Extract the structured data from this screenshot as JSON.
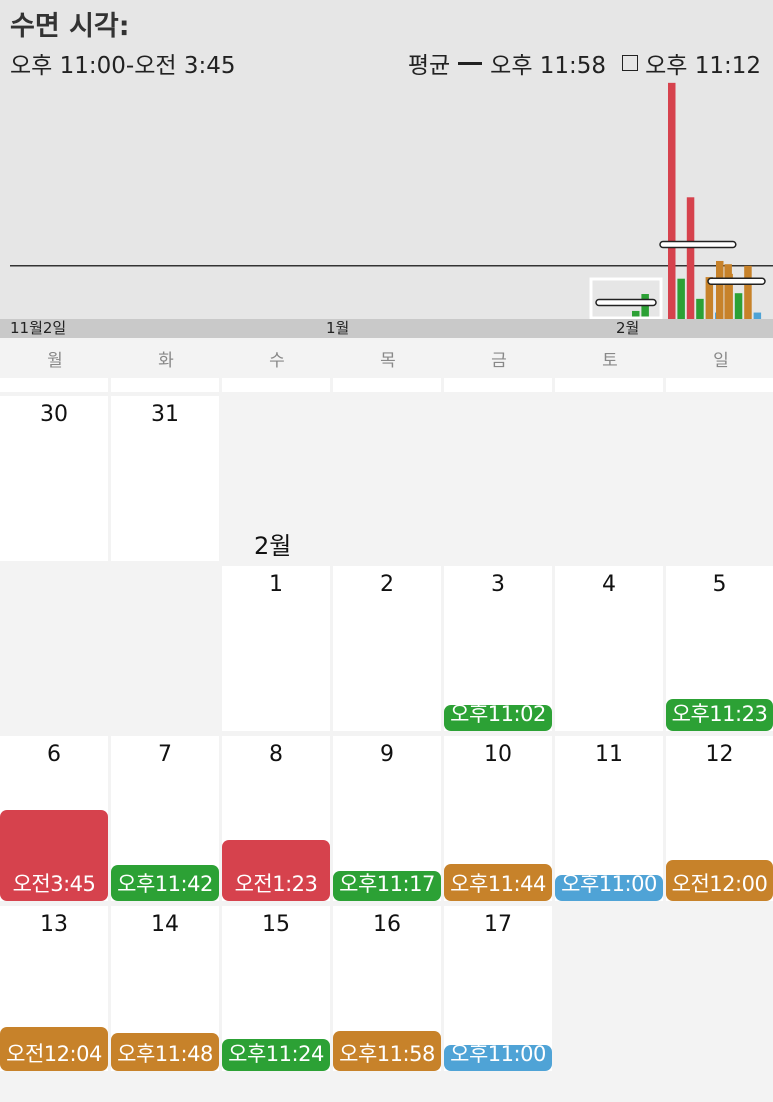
{
  "header": {
    "title": "수면 시각:",
    "range": "오후 11:00-오전 3:45",
    "avg_label": "평균",
    "avg_value": "오후 11:58",
    "box_value": "오후 11:12"
  },
  "chart_data": {
    "type": "bar",
    "x_tick_labels": [
      "11월2일",
      "1월",
      "2월"
    ],
    "average_line": "오후 11:58",
    "colors": {
      "red": "#d6424d",
      "green": "#2ca135",
      "orange": "#c7822a",
      "blue": "#4fa3d6"
    },
    "weeks": [
      {
        "days": [
          "1",
          "2",
          "3",
          "4",
          "5"
        ],
        "bars": [
          {
            "day": "3",
            "value": "오후 11:02",
            "color": "green"
          },
          {
            "day": "5",
            "value": "오후 11:23",
            "color": "green"
          }
        ]
      },
      {
        "days": [
          "6",
          "7",
          "8",
          "9",
          "10",
          "11",
          "12"
        ],
        "bars": [
          {
            "day": "6",
            "value": "오전 3:45",
            "color": "red"
          },
          {
            "day": "7",
            "value": "오후 11:42",
            "color": "green"
          },
          {
            "day": "8",
            "value": "오전 1:23",
            "color": "red"
          },
          {
            "day": "9",
            "value": "오후 11:17",
            "color": "green"
          },
          {
            "day": "10",
            "value": "오후 11:44",
            "color": "orange"
          },
          {
            "day": "11",
            "value": "오후 11:00",
            "color": "blue"
          },
          {
            "day": "12",
            "value": "오전 12:00",
            "color": "orange"
          }
        ]
      },
      {
        "days": [
          "13",
          "14",
          "15",
          "16",
          "17"
        ],
        "bars": [
          {
            "day": "13",
            "value": "오전 12:04",
            "color": "orange"
          },
          {
            "day": "14",
            "value": "오후 11:48",
            "color": "orange"
          },
          {
            "day": "15",
            "value": "오후 11:24",
            "color": "green"
          },
          {
            "day": "16",
            "value": "오후 11:58",
            "color": "orange"
          },
          {
            "day": "17",
            "value": "오후 11:00",
            "color": "blue"
          }
        ]
      }
    ]
  },
  "weekdays": [
    "월",
    "화",
    "수",
    "목",
    "금",
    "토",
    "일"
  ],
  "calendar": {
    "prev_month_days": [
      "30",
      "31"
    ],
    "month_label": "2월",
    "days": [
      {
        "day": "1"
      },
      {
        "day": "2"
      },
      {
        "day": "3",
        "sleep": "오후11:02",
        "color": "green",
        "minutes": 1382
      },
      {
        "day": "4"
      },
      {
        "day": "5",
        "sleep": "오후11:23",
        "color": "green",
        "minutes": 1403
      },
      {
        "day": "6",
        "sleep": "오전3:45",
        "color": "red",
        "minutes": 1665
      },
      {
        "day": "7",
        "sleep": "오후11:42",
        "color": "green",
        "minutes": 1422
      },
      {
        "day": "8",
        "sleep": "오전1:23",
        "color": "red",
        "minutes": 1523
      },
      {
        "day": "9",
        "sleep": "오후11:17",
        "color": "green",
        "minutes": 1397
      },
      {
        "day": "10",
        "sleep": "오후11:44",
        "color": "orange",
        "minutes": 1424
      },
      {
        "day": "11",
        "sleep": "오후11:00",
        "color": "blue",
        "minutes": 1380
      },
      {
        "day": "12",
        "sleep": "오전12:00",
        "color": "orange",
        "minutes": 1440
      },
      {
        "day": "13",
        "sleep": "오전12:04",
        "color": "orange",
        "minutes": 1444
      },
      {
        "day": "14",
        "sleep": "오후11:48",
        "color": "orange",
        "minutes": 1428
      },
      {
        "day": "15",
        "sleep": "오후11:24",
        "color": "green",
        "minutes": 1404
      },
      {
        "day": "16",
        "sleep": "오후11:58",
        "color": "orange",
        "minutes": 1438
      },
      {
        "day": "17",
        "sleep": "오후11:00",
        "color": "blue",
        "minutes": 1380
      }
    ]
  }
}
